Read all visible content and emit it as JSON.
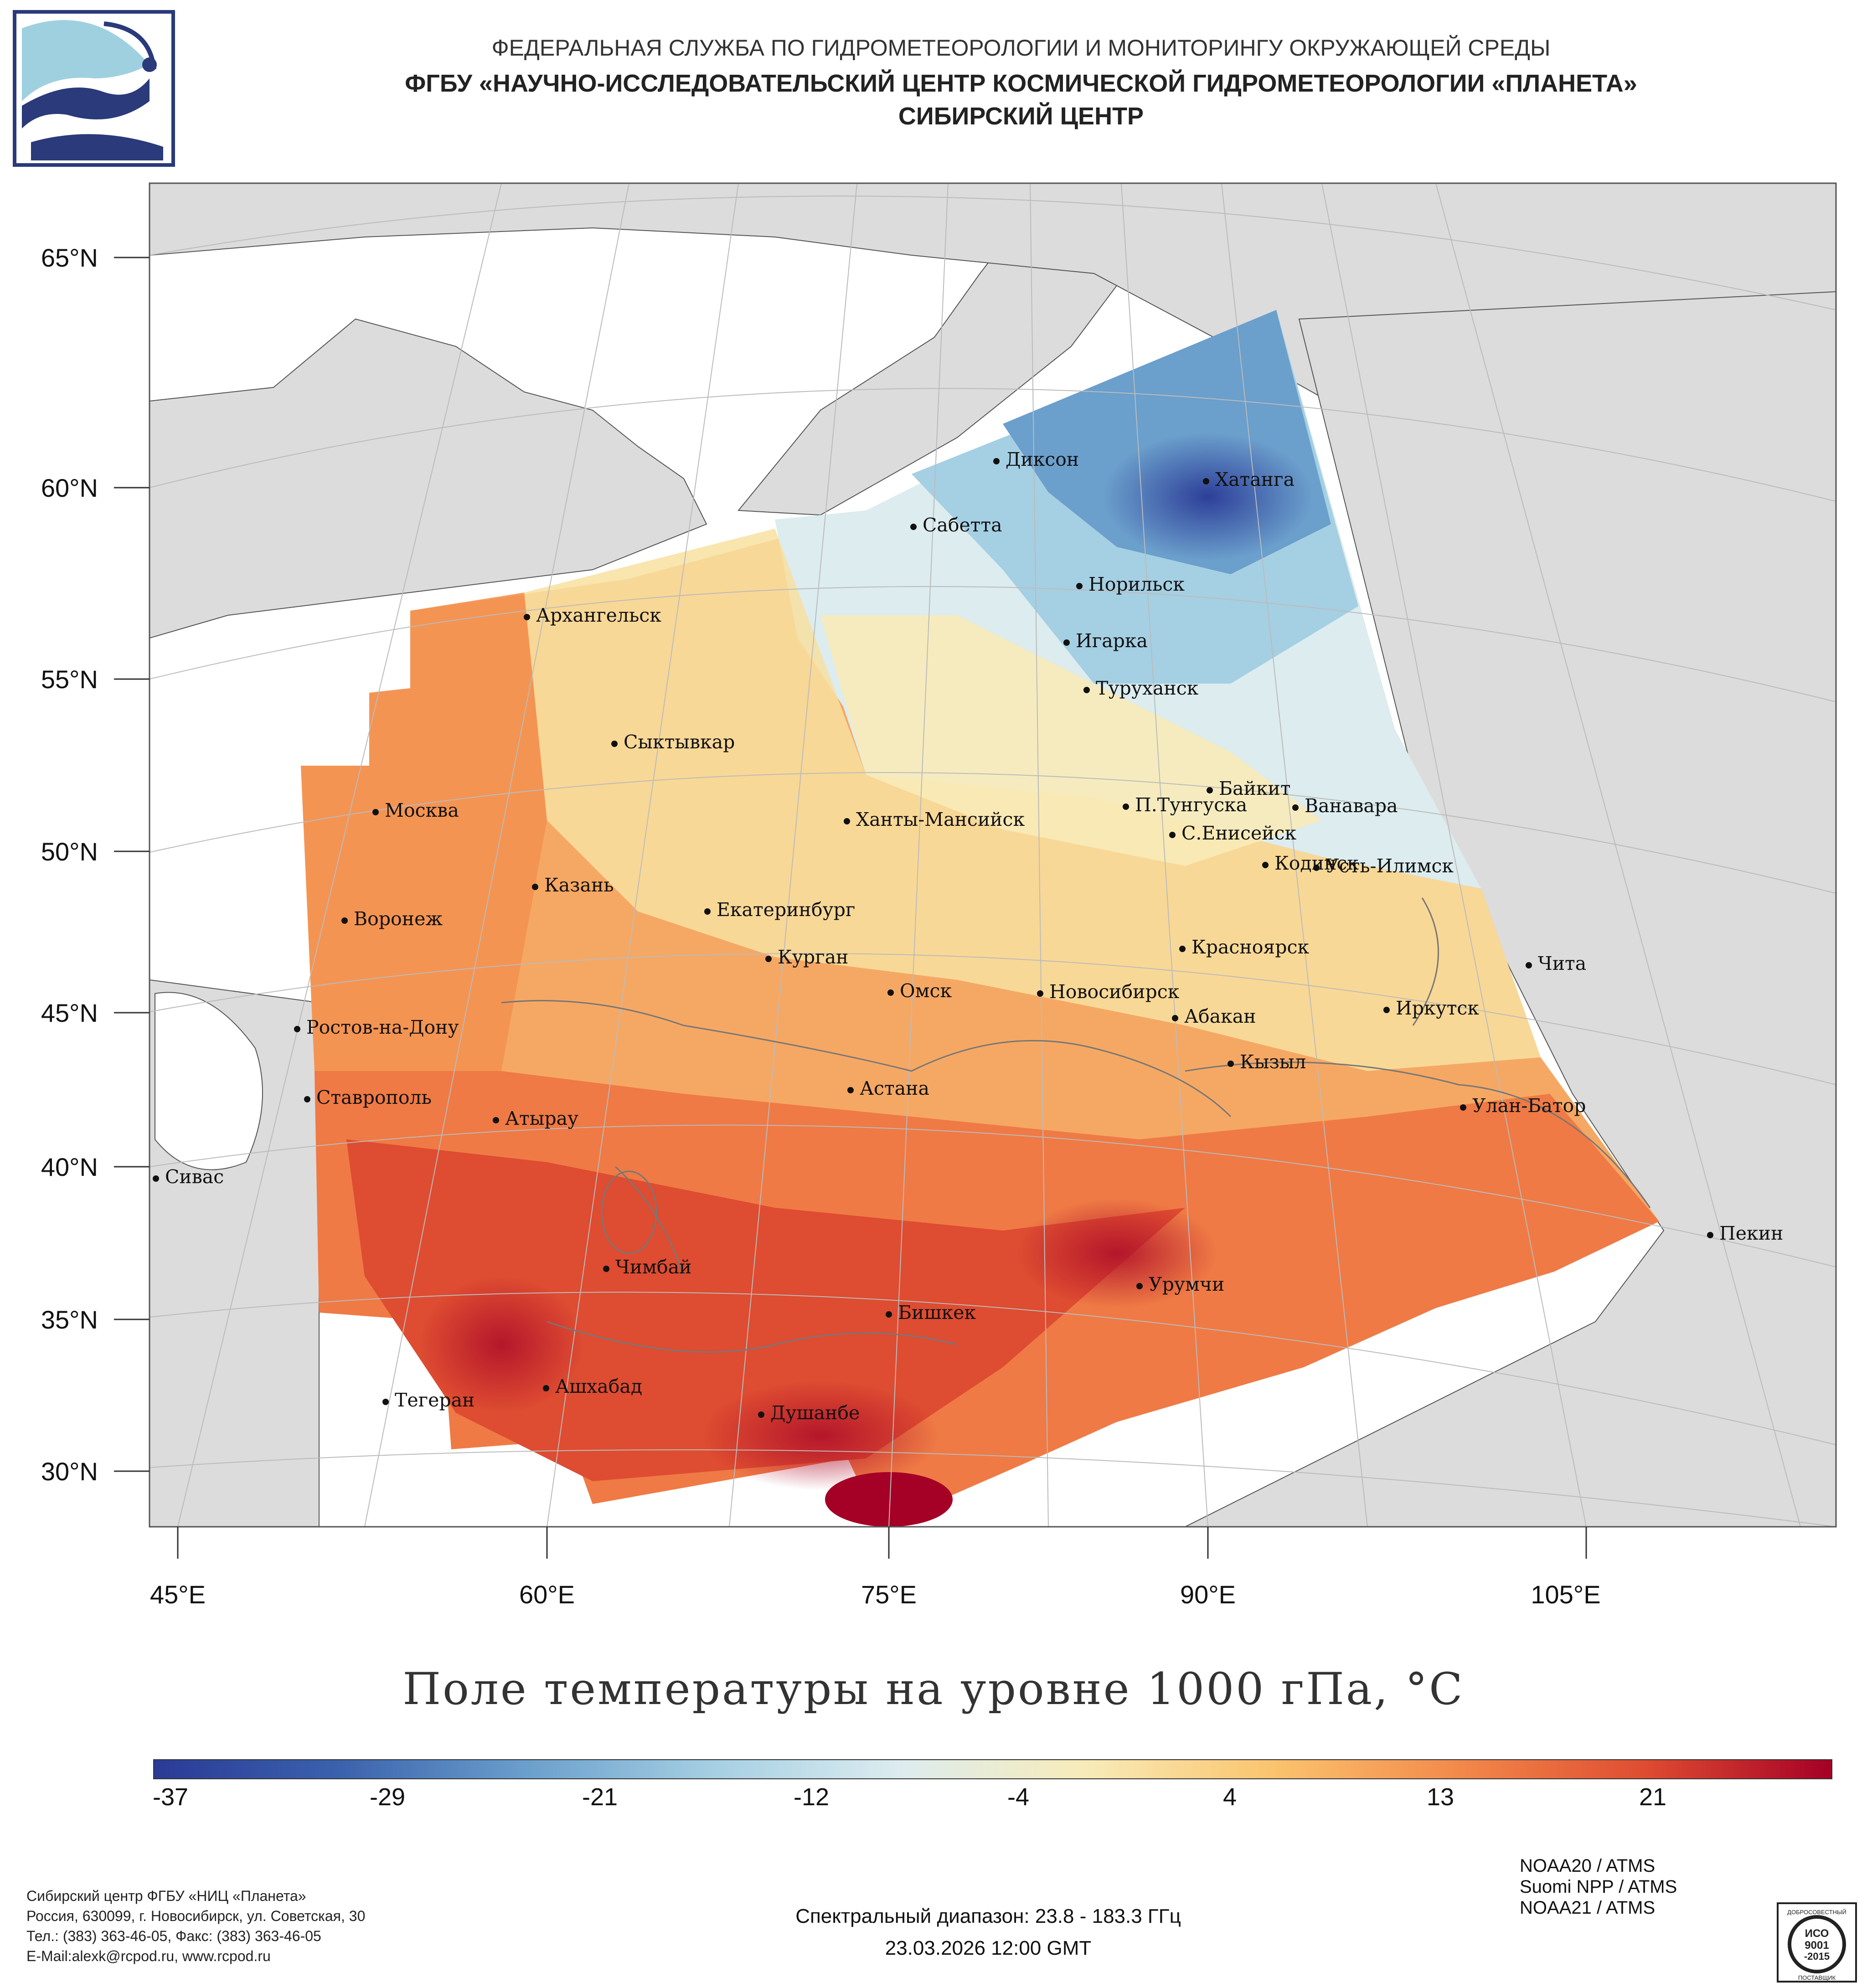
{
  "header": {
    "line1": "ФЕДЕРАЛЬНАЯ СЛУЖБА ПО ГИДРОМЕТЕОРОЛОГИИ И МОНИТОРИНГУ ОКРУЖАЮЩЕЙ СРЕДЫ",
    "line2": "ФГБУ «НАУЧНО-ИССЛЕДОВАТЕЛЬСКИЙ ЦЕНТР КОСМИЧЕСКОЙ ГИДРОМЕТЕОРОЛОГИИ «ПЛАНЕТА»",
    "line3": "СИБИРСКИЙ ЦЕНТР"
  },
  "map": {
    "lat_labels": [
      "65°N",
      "60°N",
      "55°N",
      "50°N",
      "45°N",
      "40°N",
      "35°N",
      "30°N"
    ],
    "lon_labels": [
      "45°E",
      "60°E",
      "75°E",
      "90°E",
      "105°E"
    ],
    "cities": [
      {
        "name": "Диксон"
      },
      {
        "name": "Хатанга"
      },
      {
        "name": "Сабетта"
      },
      {
        "name": "Норильск"
      },
      {
        "name": "Игарка"
      },
      {
        "name": "Туруханск"
      },
      {
        "name": "Архангельск"
      },
      {
        "name": "Сыктывкар"
      },
      {
        "name": "Байкит"
      },
      {
        "name": "П.Тунгуска"
      },
      {
        "name": "Ванавара"
      },
      {
        "name": "С.Енисейск"
      },
      {
        "name": "Москва"
      },
      {
        "name": "Ханты-Мансийск"
      },
      {
        "name": "Кодинск"
      },
      {
        "name": "Усть-Илимск"
      },
      {
        "name": "Казань"
      },
      {
        "name": "Екатеринбург"
      },
      {
        "name": "Воронеж"
      },
      {
        "name": "Красноярск"
      },
      {
        "name": "Курган"
      },
      {
        "name": "Чита"
      },
      {
        "name": "Омск"
      },
      {
        "name": "Новосибирск"
      },
      {
        "name": "Иркутск"
      },
      {
        "name": "Ростов-на-Дону"
      },
      {
        "name": "Абакан"
      },
      {
        "name": "Кызыл"
      },
      {
        "name": "Астана"
      },
      {
        "name": "Ставрополь"
      },
      {
        "name": "Улан-Батор"
      },
      {
        "name": "Атырау"
      },
      {
        "name": "Сивас"
      },
      {
        "name": "Пекин"
      },
      {
        "name": "Чимбай"
      },
      {
        "name": "Урумчи"
      },
      {
        "name": "Бишкек"
      },
      {
        "name": "Ашхабад"
      },
      {
        "name": "Тегеран"
      },
      {
        "name": "Душанбе"
      }
    ]
  },
  "title": "Поле температуры на уровне 1000 гПа, °C",
  "colorbar": {
    "min": -37,
    "max": 29,
    "ticks": [
      "-37",
      "-29",
      "-21",
      "-12",
      "-4",
      "4",
      "13",
      "21"
    ],
    "colors": [
      "#2a3a96",
      "#3b62ad",
      "#6b9fcc",
      "#a5cfe3",
      "#dcecef",
      "#f8ebb8",
      "#fbc46e",
      "#f2894b",
      "#de4c31",
      "#a50026"
    ]
  },
  "footer": {
    "org_lines": [
      "Сибирский центр ФГБУ «НИЦ «Планета»",
      "Россия, 630099, г. Новосибирск, ул. Советская, 30",
      "Тел.: (383) 363-46-05, Факс: (383) 363-46-05",
      "E-Mail:alexk@rcpod.ru, www.rcpod.ru"
    ],
    "spectral": "Спектральный диапазон: 23.8 - 183.3 ГГц",
    "datetime": "23.03.2026 12:00 GMT",
    "sources": [
      "NOAA20 / ATMS",
      "Suomi NPP / ATMS",
      "NOAA21 / ATMS"
    ],
    "badge": {
      "top": "ДОБРОСОВЕСТНЫЙ",
      "line1": "ИСО",
      "line2": "9001",
      "line3": "-2015",
      "bottom": "ПОСТАВЩИК"
    }
  }
}
